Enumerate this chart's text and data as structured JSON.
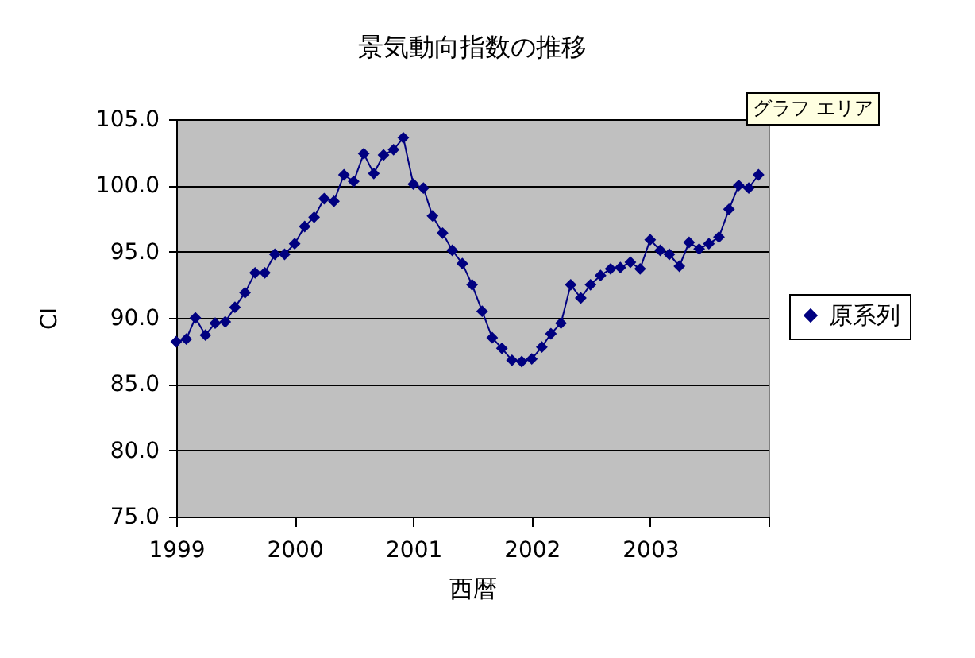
{
  "chart_data": {
    "type": "line",
    "title": "景気動向指数の推移",
    "xlabel": "西暦",
    "ylabel": "CI",
    "x": [
      "1999-01",
      "1999-02",
      "1999-03",
      "1999-04",
      "1999-05",
      "1999-06",
      "1999-07",
      "1999-08",
      "1999-09",
      "1999-10",
      "1999-11",
      "1999-12",
      "2000-01",
      "2000-02",
      "2000-03",
      "2000-04",
      "2000-05",
      "2000-06",
      "2000-07",
      "2000-08",
      "2000-09",
      "2000-10",
      "2000-11",
      "2000-12",
      "2001-01",
      "2001-02",
      "2001-03",
      "2001-04",
      "2001-05",
      "2001-06",
      "2001-07",
      "2001-08",
      "2001-09",
      "2001-10",
      "2001-11",
      "2001-12",
      "2002-01",
      "2002-02",
      "2002-03",
      "2002-04",
      "2002-05",
      "2002-06",
      "2002-07",
      "2002-08",
      "2002-09",
      "2002-10",
      "2002-11",
      "2002-12",
      "2003-01",
      "2003-02",
      "2003-03",
      "2003-04",
      "2003-05",
      "2003-06",
      "2003-07",
      "2003-08",
      "2003-09",
      "2003-10",
      "2003-11",
      "2003-12"
    ],
    "series": [
      {
        "name": "原系列",
        "color": "#000080",
        "values": [
          88.2,
          88.4,
          90.0,
          88.7,
          89.6,
          89.7,
          90.8,
          91.9,
          93.4,
          93.4,
          94.8,
          94.8,
          95.6,
          96.9,
          97.6,
          99.0,
          98.8,
          100.8,
          100.3,
          102.4,
          100.9,
          102.3,
          102.7,
          103.6,
          100.1,
          99.8,
          97.7,
          96.4,
          95.1,
          94.1,
          92.5,
          90.5,
          88.5,
          87.7,
          86.8,
          86.7,
          86.9,
          87.8,
          88.8,
          89.6,
          92.5,
          91.5,
          92.5,
          93.2,
          93.7,
          93.8,
          94.2,
          93.7,
          95.9,
          95.1,
          94.8,
          93.9,
          95.7,
          95.2,
          95.6,
          96.1,
          98.2,
          100.0,
          99.8,
          100.8
        ]
      }
    ],
    "xlim": [
      "1999-01",
      "2004-01"
    ],
    "xticks": [
      {
        "value": "1999-01",
        "label": "1999"
      },
      {
        "value": "2000-01",
        "label": "2000"
      },
      {
        "value": "2001-01",
        "label": "2001"
      },
      {
        "value": "2002-01",
        "label": "2002"
      },
      {
        "value": "2003-01",
        "label": "2003"
      },
      {
        "value": "2004-01",
        "label": null
      }
    ],
    "ylim": [
      75,
      105
    ],
    "yticks": [
      {
        "value": 75,
        "label": "75.0"
      },
      {
        "value": 80,
        "label": "80.0"
      },
      {
        "value": 85,
        "label": "85.0"
      },
      {
        "value": 90,
        "label": "90.0"
      },
      {
        "value": 95,
        "label": "95.0"
      },
      {
        "value": 100,
        "label": "100.0"
      },
      {
        "value": 105,
        "label": "105.0"
      }
    ],
    "grid": "y",
    "legend": "right",
    "marker": "diamond",
    "line_style": "solid",
    "annotations": [
      "グラフ エリア"
    ]
  }
}
